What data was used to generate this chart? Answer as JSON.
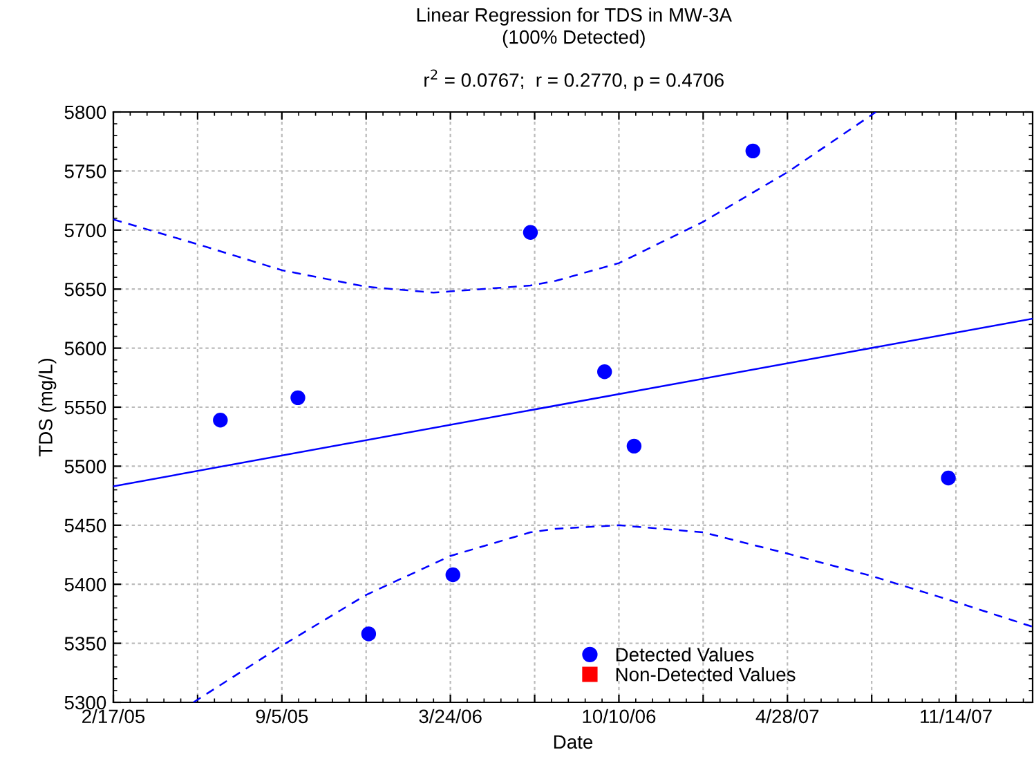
{
  "chart_data": {
    "type": "scatter",
    "title": "Linear Regression for TDS in MW-3A",
    "subtitle": "(100% Detected)",
    "annotations": [
      "r$^{2}$ = 0.0767;  r = 0.2770, p = 0.4706"
    ],
    "xlabel": "Date",
    "ylabel": "TDS (mg/L)",
    "x": [
      "2005-06-24",
      "2005-09-24",
      "2005-12-17",
      "2006-03-27",
      "2006-06-27",
      "2006-09-23",
      "2006-10-28",
      "2007-03-18",
      "2007-11-05"
    ],
    "series": [
      {
        "name": "Detected Values",
        "color": "#0000ff",
        "marker": "circle",
        "values": [
          5539,
          5558,
          5358,
          5408,
          5698,
          5580,
          5517,
          5767,
          5490
        ]
      },
      {
        "name": "Non-Detected Values",
        "color": "#ff0000",
        "marker": "square",
        "values": [
          null,
          null,
          null,
          null,
          null,
          null,
          null,
          null,
          null
        ]
      },
      {
        "type": "line",
        "color": "#0000ff",
        "line_style": "solid",
        "x": [
          "2005-02-17",
          "2008-02-13"
        ],
        "values": [
          5483,
          5625
        ]
      },
      {
        "type": "line",
        "color": "#0000ff",
        "line_style": "dashed",
        "x": [
          "2005-02-17",
          "2005-05-28",
          "2005-09-05",
          "2005-12-14",
          "2006-03-04",
          "2006-06-27",
          "2006-07-27",
          "2006-10-10",
          "2007-01-18",
          "2007-04-28",
          "2007-08-11"
        ],
        "values": [
          5709,
          5688,
          5666,
          5652,
          5647,
          5653,
          5657,
          5672,
          5707,
          5749,
          5800
        ]
      },
      {
        "type": "line",
        "color": "#0000ff",
        "line_style": "dashed",
        "x": [
          "2005-05-23",
          "2005-09-05",
          "2005-12-14",
          "2006-03-24",
          "2006-06-27",
          "2006-07-27",
          "2006-10-10",
          "2007-01-18",
          "2007-04-28",
          "2007-08-06",
          "2007-11-14",
          "2008-02-13"
        ],
        "values": [
          5300,
          5348,
          5391,
          5424,
          5444,
          5447,
          5450,
          5444,
          5426,
          5407,
          5385,
          5364
        ]
      }
    ],
    "xlim": [
      "2005-02-17",
      "2008-02-13"
    ],
    "xticks": [
      {
        "value": "2005-02-17",
        "label": "2/17/05"
      },
      {
        "value": "2005-05-28",
        "label": null
      },
      {
        "value": "2005-09-05",
        "label": "9/5/05"
      },
      {
        "value": "2005-12-14",
        "label": null
      },
      {
        "value": "2006-03-24",
        "label": "3/24/06"
      },
      {
        "value": "2006-07-02",
        "label": null
      },
      {
        "value": "2006-10-10",
        "label": "10/10/06"
      },
      {
        "value": "2007-01-18",
        "label": null
      },
      {
        "value": "2007-04-28",
        "label": "4/28/07"
      },
      {
        "value": "2007-08-06",
        "label": null
      },
      {
        "value": "2007-11-14",
        "label": "11/14/07"
      }
    ],
    "ylim": [
      5300,
      5800
    ],
    "yticks": [
      5300,
      5350,
      5400,
      5450,
      5500,
      5550,
      5600,
      5650,
      5700,
      5750,
      5800
    ],
    "grid": true,
    "legend": "bottom"
  }
}
